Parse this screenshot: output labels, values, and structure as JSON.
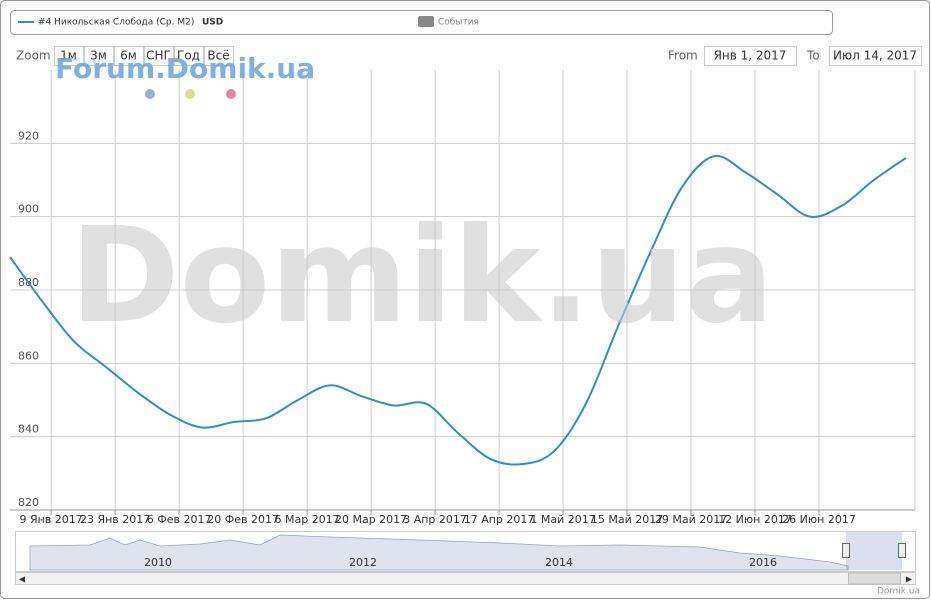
{
  "chart_data": {
    "type": "line",
    "legend": {
      "series_label": "#4 Никольская Слобода (Ср. M2)",
      "currency": "USD",
      "events": "События"
    },
    "zoom": {
      "label": "Zoom",
      "buttons": [
        "1м",
        "3м",
        "6м",
        "СНГ",
        "Год",
        "Всё"
      ]
    },
    "range": {
      "from_label": "From",
      "from": "Янв 1, 2017",
      "to_label": "To",
      "to": "Июл 14, 2017"
    },
    "watermarks": [
      "Forum.Domik.ua",
      "Domik.ua"
    ],
    "navigator_years": [
      "2010",
      "2012",
      "2014",
      "2016"
    ],
    "credit": "Domik.ua",
    "x": [
      "2016-12-31",
      "2017-01-07",
      "2017-01-14",
      "2017-01-21",
      "2017-01-28",
      "2017-02-04",
      "2017-02-11",
      "2017-02-18",
      "2017-02-25",
      "2017-03-04",
      "2017-03-11",
      "2017-03-18",
      "2017-03-25",
      "2017-04-01",
      "2017-04-08",
      "2017-04-15",
      "2017-04-22",
      "2017-04-29",
      "2017-05-06",
      "2017-05-13",
      "2017-05-20",
      "2017-05-27",
      "2017-06-03",
      "2017-06-10",
      "2017-06-17",
      "2017-06-24",
      "2017-07-01",
      "2017-07-08",
      "2017-07-15"
    ],
    "series": [
      {
        "name": "#4 Никольская Слобода (Ср. M2)",
        "color": "#2f8fc9",
        "values": [
          889,
          877,
          866,
          859,
          852,
          846,
          842.5,
          844,
          845,
          850,
          854,
          851,
          848.5,
          849,
          841,
          834,
          832.5,
          836,
          849,
          870,
          890,
          908,
          916.5,
          912,
          906,
          900,
          903,
          910,
          916
        ]
      }
    ],
    "xlim": [
      "2016-12-31",
      "2017-07-17"
    ],
    "xticks": [
      {
        "value": "2017-01-09",
        "label": "9 Янв 2017"
      },
      {
        "value": "2017-01-23",
        "label": "23 Янв 2017"
      },
      {
        "value": "2017-02-06",
        "label": "6 Фев 2017"
      },
      {
        "value": "2017-02-20",
        "label": "20 Фев 2017"
      },
      {
        "value": "2017-03-06",
        "label": "6 Мар 2017"
      },
      {
        "value": "2017-03-20",
        "label": "20 Мар 2017"
      },
      {
        "value": "2017-04-03",
        "label": "3 Апр 2017"
      },
      {
        "value": "2017-04-17",
        "label": "17 Апр 2017"
      },
      {
        "value": "2017-05-01",
        "label": "1 Май 2017"
      },
      {
        "value": "2017-05-15",
        "label": "15 Май 2017"
      },
      {
        "value": "2017-05-29",
        "label": "29 Май 2017"
      },
      {
        "value": "2017-06-12",
        "label": "12 Июн 2017"
      },
      {
        "value": "2017-06-26",
        "label": "26 Июн 2017"
      }
    ],
    "ylim": [
      820,
      940
    ],
    "yticks": [
      820,
      840,
      860,
      880,
      900,
      920
    ],
    "grid": true
  }
}
